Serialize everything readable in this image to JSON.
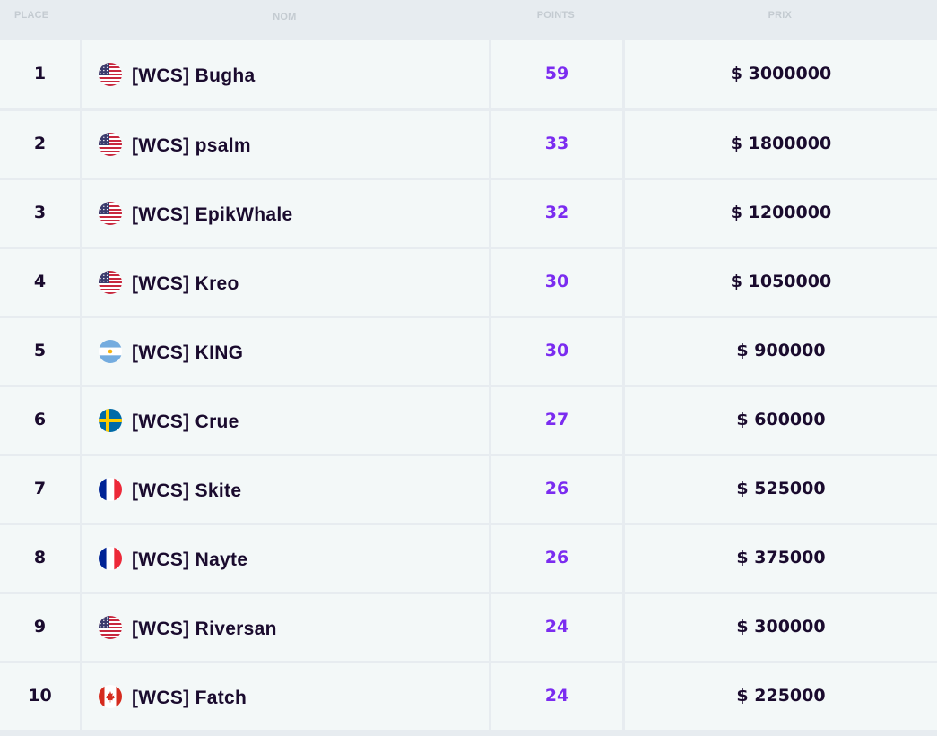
{
  "header": {
    "place": "PLACE",
    "nom": "NOM",
    "points": "POINTS",
    "prix": "PRIX"
  },
  "rows": [
    {
      "place": "1",
      "flag": "us-flag-icon",
      "name": "[WCS] Bugha",
      "points": "59",
      "prize": "$ 3000000"
    },
    {
      "place": "2",
      "flag": "us-flag-icon",
      "name": "[WCS] psalm",
      "points": "33",
      "prize": "$ 1800000"
    },
    {
      "place": "3",
      "flag": "us-flag-icon",
      "name": "[WCS] EpikWhale",
      "points": "32",
      "prize": "$ 1200000"
    },
    {
      "place": "4",
      "flag": "us-flag-icon",
      "name": "[WCS] Kreo",
      "points": "30",
      "prize": "$ 1050000"
    },
    {
      "place": "5",
      "flag": "argentina-flag-icon",
      "name": "[WCS] KING",
      "points": "30",
      "prize": "$ 900000"
    },
    {
      "place": "6",
      "flag": "sweden-flag-icon",
      "name": "[WCS] Crue",
      "points": "27",
      "prize": "$ 600000"
    },
    {
      "place": "7",
      "flag": "france-flag-icon",
      "name": "[WCS] Skite",
      "points": "26",
      "prize": "$ 525000"
    },
    {
      "place": "8",
      "flag": "france-flag-icon",
      "name": "[WCS] Nayte",
      "points": "26",
      "prize": "$ 375000"
    },
    {
      "place": "9",
      "flag": "us-flag-icon",
      "name": "[WCS] Riversan",
      "points": "24",
      "prize": "$ 300000"
    },
    {
      "place": "10",
      "flag": "canada-flag-icon",
      "name": "[WCS] Fatch",
      "points": "24",
      "prize": "$ 225000"
    }
  ],
  "colors": {
    "points": "#7b2cf0",
    "text": "#1a0b2e",
    "header_text": "#c4cbd1",
    "cell_bg": "#f3f8f8",
    "divider": "#e7ecf0"
  }
}
